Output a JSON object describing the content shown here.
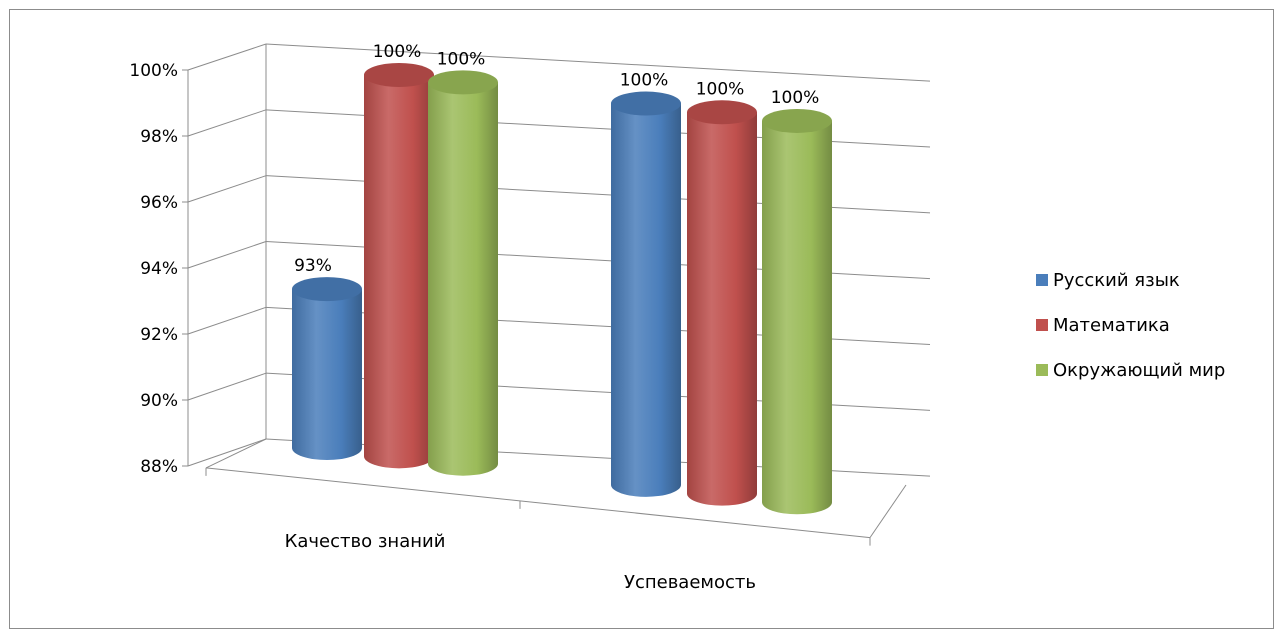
{
  "chart_data": {
    "type": "bar",
    "categories": [
      "Качество знаний",
      "Успеваемость"
    ],
    "series": [
      {
        "name": "Русский язык",
        "values": [
          93,
          100
        ],
        "color": "#4a7ebb"
      },
      {
        "name": "Математика",
        "values": [
          100,
          100
        ],
        "color": "#c0504d"
      },
      {
        "name": "Окружающий мир",
        "values": [
          100,
          100
        ],
        "color": "#9bbb59"
      }
    ],
    "data_labels": [
      [
        "93%",
        "100%"
      ],
      [
        "100%",
        "100%"
      ],
      [
        "100%",
        "100%"
      ]
    ],
    "y_ticks": [
      "88%",
      "90%",
      "92%",
      "94%",
      "96%",
      "98%",
      "100%"
    ],
    "ylim": [
      88,
      100
    ],
    "legend_position": "right",
    "grid": true,
    "bar_shape": "cylinder-3d"
  }
}
